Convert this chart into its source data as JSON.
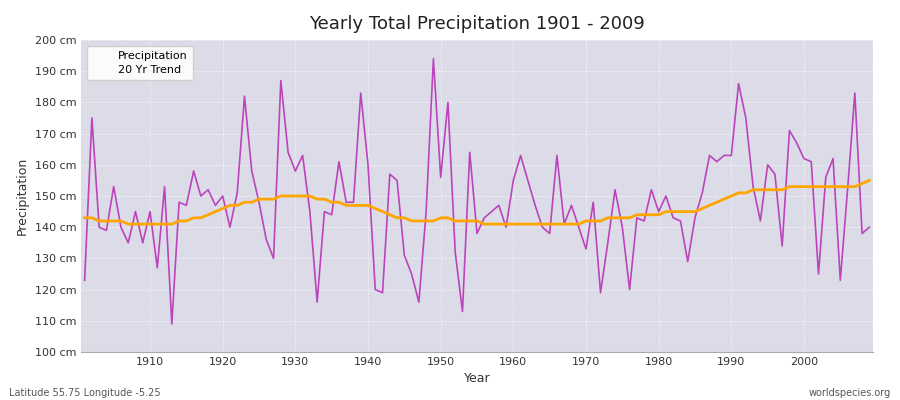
{
  "title": "Yearly Total Precipitation 1901 - 2009",
  "xlabel": "Year",
  "ylabel": "Precipitation",
  "lat_lon_label": "Latitude 55.75 Longitude -5.25",
  "watermark": "worldspecies.org",
  "ylim": [
    100,
    200
  ],
  "yticks": [
    100,
    110,
    120,
    130,
    140,
    150,
    160,
    170,
    180,
    190,
    200
  ],
  "ytick_labels": [
    "100 cm",
    "110 cm",
    "120 cm",
    "130 cm",
    "140 cm",
    "150 cm",
    "160 cm",
    "170 cm",
    "180 cm",
    "190 cm",
    "200 cm"
  ],
  "fig_bg_color": "#ffffff",
  "plot_bg_color": "#dcdce8",
  "precip_color": "#bb44bb",
  "trend_color": "#ffa500",
  "precip_linewidth": 1.2,
  "trend_linewidth": 2.0,
  "years": [
    1901,
    1902,
    1903,
    1904,
    1905,
    1906,
    1907,
    1908,
    1909,
    1910,
    1911,
    1912,
    1913,
    1914,
    1915,
    1916,
    1917,
    1918,
    1919,
    1920,
    1921,
    1922,
    1923,
    1924,
    1925,
    1926,
    1927,
    1928,
    1929,
    1930,
    1931,
    1932,
    1933,
    1934,
    1935,
    1936,
    1937,
    1938,
    1939,
    1940,
    1941,
    1942,
    1943,
    1944,
    1945,
    1946,
    1947,
    1948,
    1949,
    1950,
    1951,
    1952,
    1953,
    1954,
    1955,
    1956,
    1957,
    1958,
    1959,
    1960,
    1961,
    1962,
    1963,
    1964,
    1965,
    1966,
    1967,
    1968,
    1969,
    1970,
    1971,
    1972,
    1973,
    1974,
    1975,
    1976,
    1977,
    1978,
    1979,
    1980,
    1981,
    1982,
    1983,
    1984,
    1985,
    1986,
    1987,
    1988,
    1989,
    1990,
    1991,
    1992,
    1993,
    1994,
    1995,
    1996,
    1997,
    1998,
    1999,
    2000,
    2001,
    2002,
    2003,
    2004,
    2005,
    2006,
    2007,
    2008,
    2009
  ],
  "precipitation": [
    123,
    175,
    140,
    139,
    153,
    140,
    135,
    145,
    135,
    145,
    127,
    153,
    109,
    148,
    147,
    158,
    150,
    152,
    147,
    150,
    140,
    151,
    182,
    158,
    148,
    136,
    130,
    187,
    164,
    158,
    163,
    145,
    116,
    145,
    144,
    161,
    148,
    148,
    183,
    160,
    120,
    119,
    157,
    155,
    131,
    125,
    116,
    145,
    194,
    156,
    180,
    132,
    113,
    164,
    138,
    143,
    145,
    147,
    140,
    155,
    163,
    155,
    147,
    140,
    138,
    163,
    141,
    147,
    140,
    133,
    148,
    119,
    135,
    152,
    140,
    120,
    143,
    142,
    152,
    145,
    150,
    143,
    142,
    129,
    143,
    151,
    163,
    161,
    163,
    163,
    186,
    175,
    153,
    142,
    160,
    157,
    134,
    171,
    167,
    162,
    161,
    125,
    156,
    162,
    123,
    152,
    183,
    138,
    140
  ],
  "trend": [
    143,
    143,
    142,
    142,
    142,
    142,
    141,
    141,
    141,
    141,
    141,
    141,
    141,
    142,
    142,
    143,
    143,
    144,
    145,
    146,
    147,
    147,
    148,
    148,
    149,
    149,
    149,
    150,
    150,
    150,
    150,
    150,
    149,
    149,
    148,
    148,
    147,
    147,
    147,
    147,
    146,
    145,
    144,
    143,
    143,
    142,
    142,
    142,
    142,
    143,
    143,
    142,
    142,
    142,
    142,
    141,
    141,
    141,
    141,
    141,
    141,
    141,
    141,
    141,
    141,
    141,
    141,
    141,
    141,
    142,
    142,
    142,
    143,
    143,
    143,
    143,
    144,
    144,
    144,
    144,
    145,
    145,
    145,
    145,
    145,
    146,
    147,
    148,
    149,
    150,
    151,
    151,
    152,
    152,
    152,
    152,
    152,
    153,
    153,
    153,
    153,
    153,
    153,
    153,
    153,
    153,
    153,
    154,
    155
  ]
}
